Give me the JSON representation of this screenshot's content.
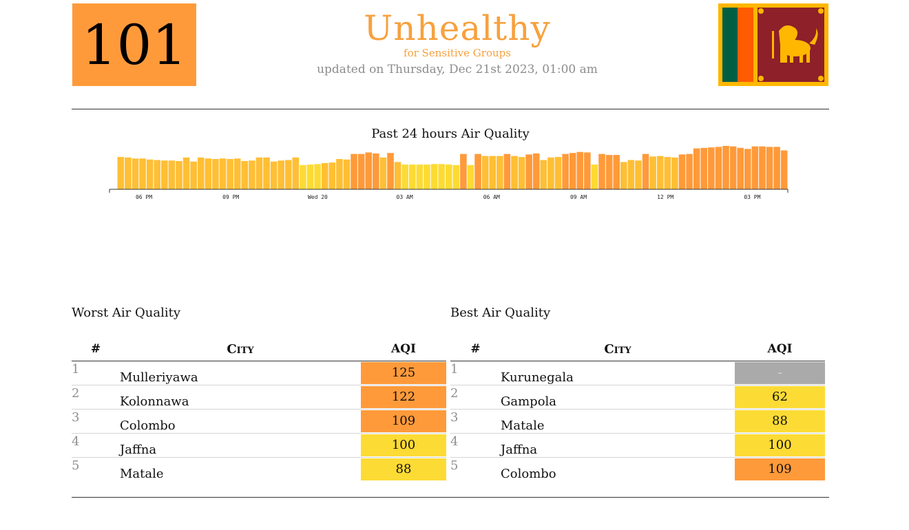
{
  "header": {
    "aqi_value": "101",
    "aqi_color": "#ff9a3a",
    "status": "Unhealthy",
    "status_sub": "for Sensitive Groups",
    "updated": "updated on Thursday, Dec 21st 2023, 01:00 am",
    "flag_icon": "sri-lanka-flag-icon"
  },
  "chart_data": {
    "type": "bar",
    "title": "Past 24 hours Air Quality",
    "xlabel": "",
    "ylabel": "",
    "tick_labels": [
      "06 PM",
      "09 PM",
      "Wed 20",
      "03 AM",
      "06 AM",
      "09 AM",
      "12 PM",
      "03 PM"
    ],
    "values": [
      104,
      103,
      101,
      101,
      99,
      98,
      97,
      97,
      96,
      103,
      95,
      103,
      101,
      100,
      101,
      100,
      101,
      96,
      97,
      103,
      103,
      95,
      97,
      98,
      103,
      88,
      89,
      90,
      92,
      93,
      100,
      99,
      110,
      110,
      113,
      111,
      103,
      112,
      94,
      89,
      89,
      89,
      89,
      90,
      90,
      89,
      88,
      110,
      88,
      110,
      106,
      106,
      106,
      110,
      106,
      104,
      109,
      111,
      98,
      103,
      104,
      110,
      112,
      114,
      113,
      89,
      110,
      108,
      108,
      94,
      98,
      97,
      110,
      105,
      106,
      104,
      103,
      109,
      110,
      121,
      122,
      123,
      124,
      126,
      125,
      122,
      120,
      125,
      125,
      124,
      124,
      117
    ],
    "colors": {
      "yellow": "#fddb35",
      "light_orange": "#ffbf35",
      "orange": "#ff9a3a",
      "lime": "#d7d530"
    },
    "ylim": [
      0,
      130
    ]
  },
  "worst": {
    "title": "Worst Air Quality",
    "headers": {
      "num": "#",
      "city": "City",
      "aqi": "AQI"
    },
    "rows": [
      {
        "rank": "1",
        "city": "Mulleriyawa",
        "aqi": "125",
        "color": "#ff9a3a"
      },
      {
        "rank": "2",
        "city": "Kolonnawa",
        "aqi": "122",
        "color": "#ff9a3a"
      },
      {
        "rank": "3",
        "city": "Colombo",
        "aqi": "109",
        "color": "#ff9a3a"
      },
      {
        "rank": "4",
        "city": "Jaffna",
        "aqi": "100",
        "color": "#fddb35"
      },
      {
        "rank": "5",
        "city": "Matale",
        "aqi": "88",
        "color": "#fddb35"
      }
    ]
  },
  "best": {
    "title": "Best Air Quality",
    "headers": {
      "num": "#",
      "city": "City",
      "aqi": "AQI"
    },
    "rows": [
      {
        "rank": "1",
        "city": "Kurunegala",
        "aqi": "-",
        "color": "#aaaaaa"
      },
      {
        "rank": "2",
        "city": "Gampola",
        "aqi": "62",
        "color": "#fddb35"
      },
      {
        "rank": "3",
        "city": "Matale",
        "aqi": "88",
        "color": "#fddb35"
      },
      {
        "rank": "4",
        "city": "Jaffna",
        "aqi": "100",
        "color": "#fddb35"
      },
      {
        "rank": "5",
        "city": "Colombo",
        "aqi": "109",
        "color": "#ff9a3a"
      }
    ]
  }
}
